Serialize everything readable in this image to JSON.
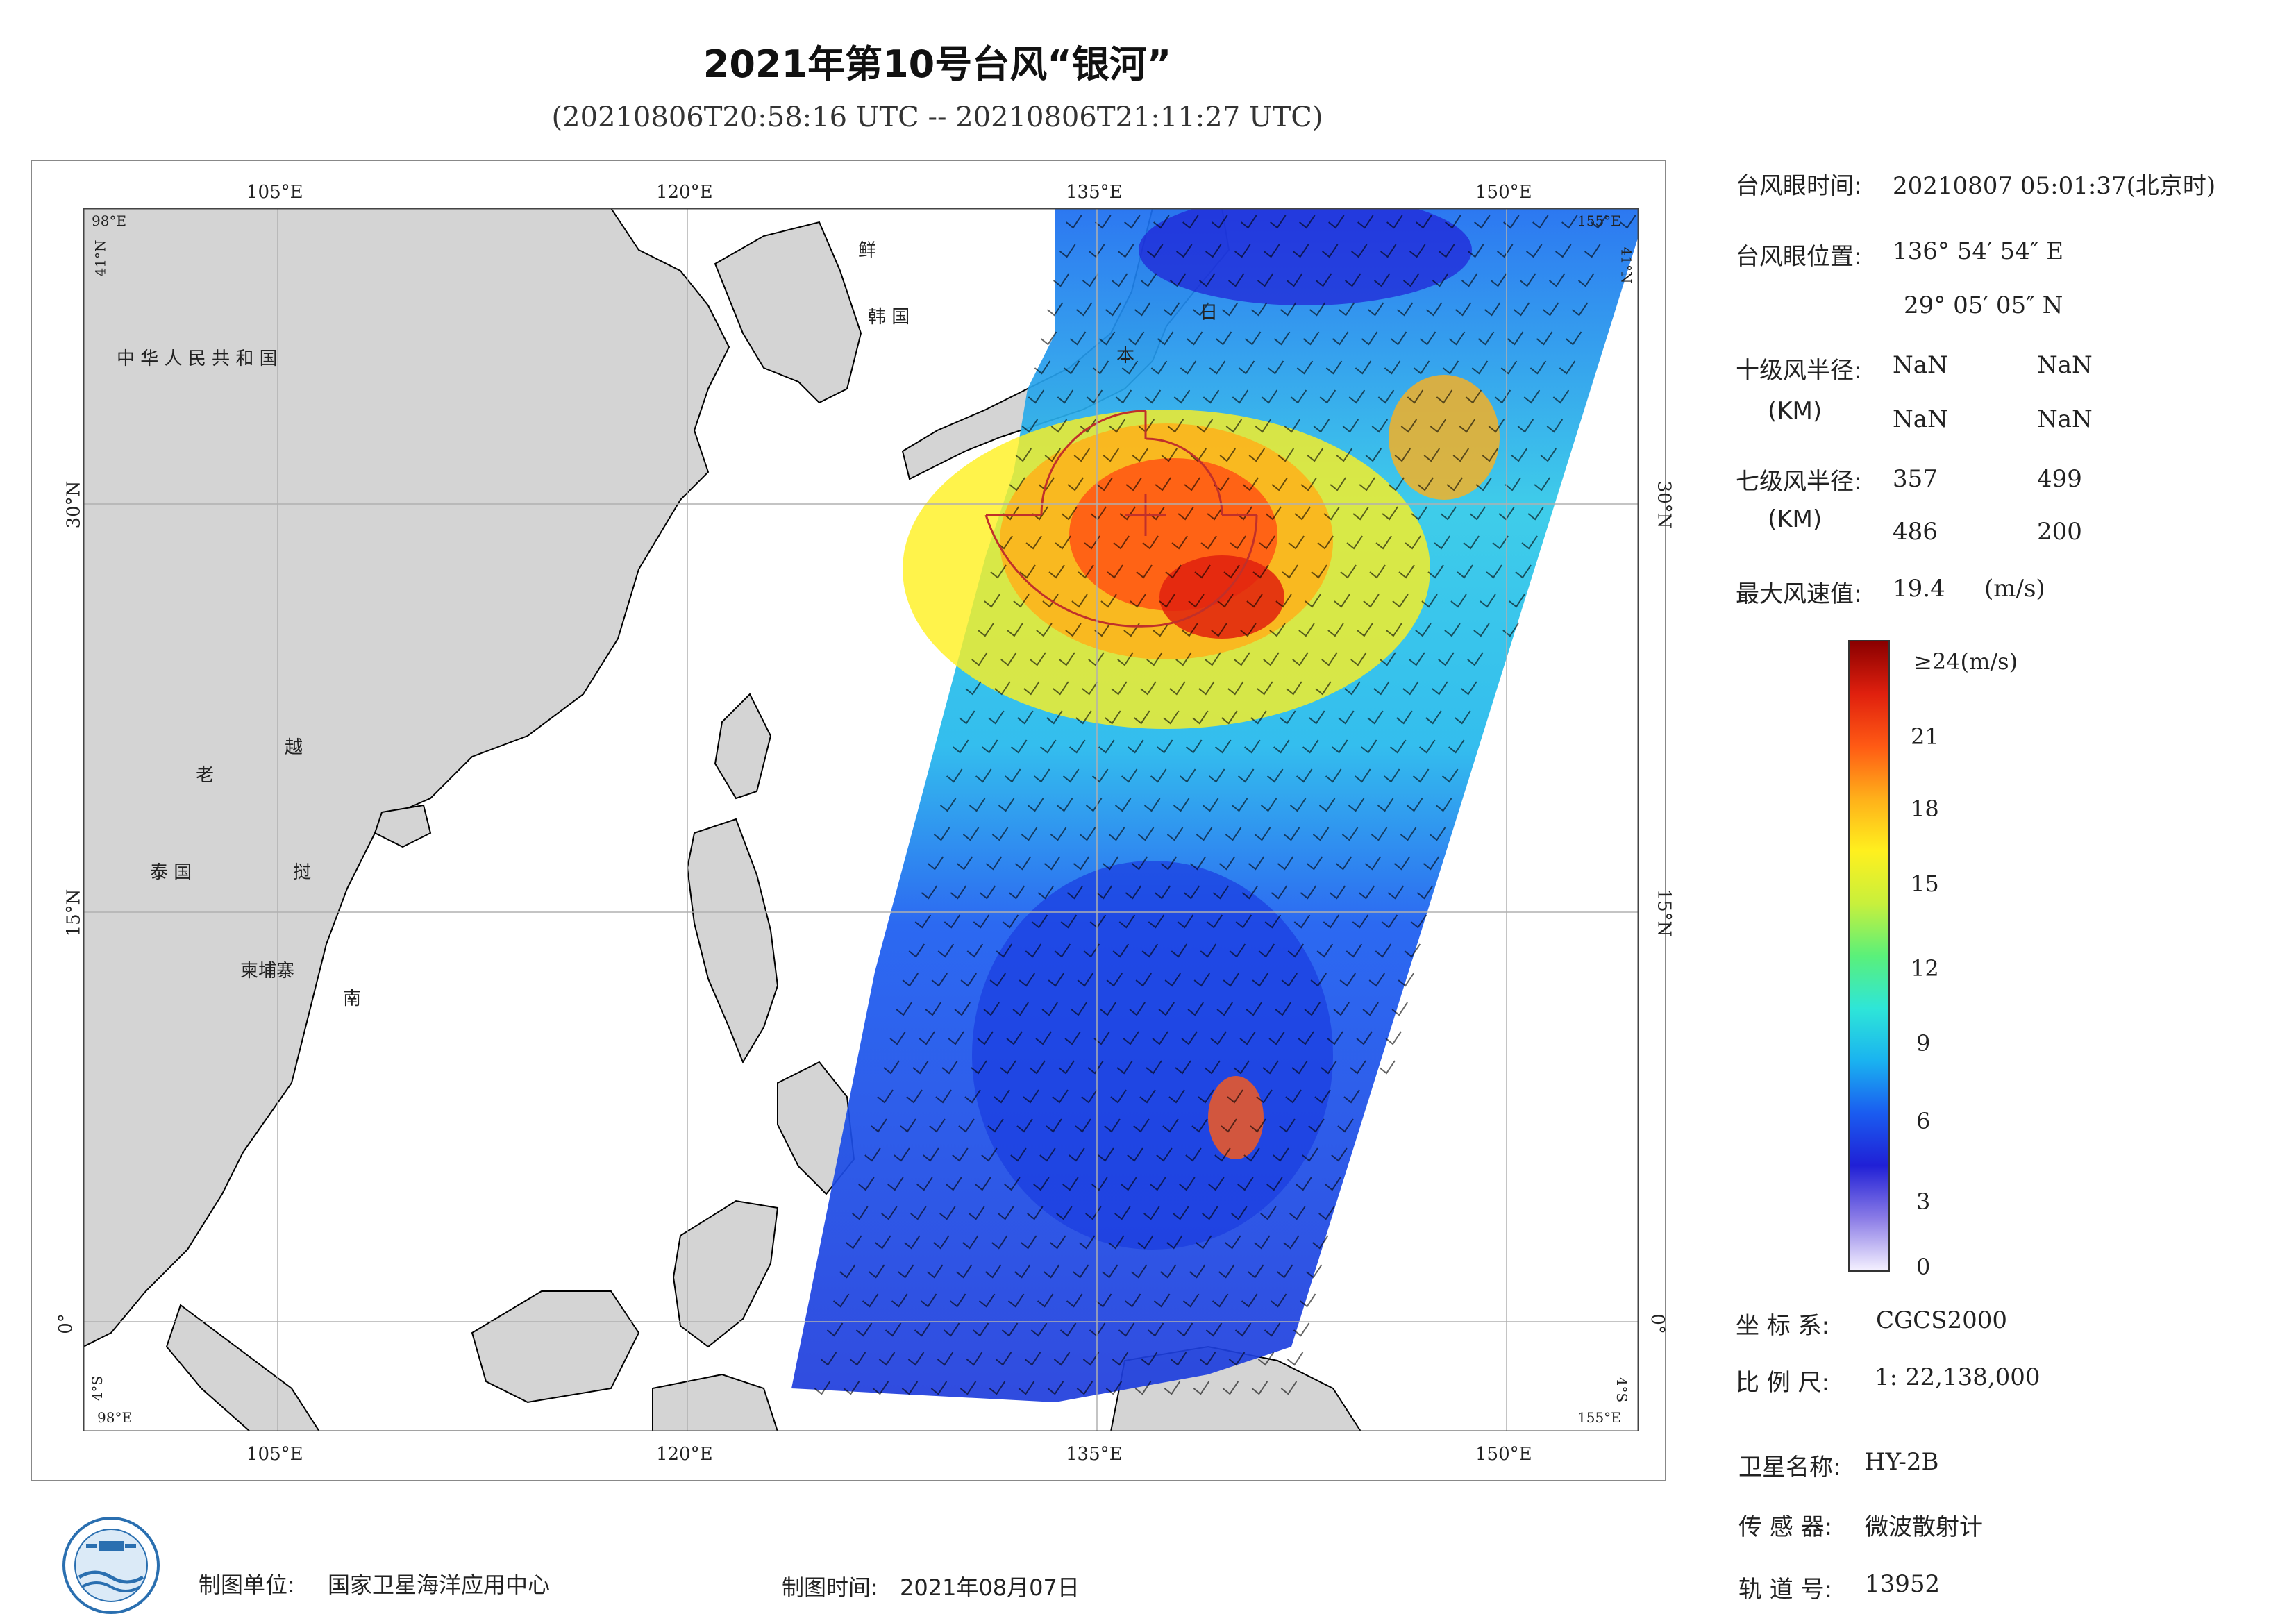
{
  "title": "2021年第10号台风“银河”",
  "subtitle": "(20210806T20:58:16 UTC -- 20210806T21:11:27 UTC)",
  "map": {
    "top_lon_labels": [
      "105°E",
      "120°E",
      "135°E",
      "150°E"
    ],
    "bottom_lon_labels": [
      "105°E",
      "120°E",
      "135°E",
      "150°E"
    ],
    "left_lat_labels": [
      "30°N",
      "15°N",
      "0°"
    ],
    "right_lat_labels": [
      "30°N",
      "15°N",
      "0°"
    ],
    "corner_labels": {
      "top_left_lon": "98°E",
      "top_left_lat": "41°N",
      "top_right_lon": "155°E",
      "top_right_lat": "41°N",
      "bottom_left_lon": "98°E",
      "bottom_left_lat": "4°S",
      "bottom_right_lon": "155°E",
      "bottom_right_lat": "4°S"
    },
    "place_labels": {
      "china": "中 华 人 民 共 和 国",
      "korea_north": "鲜",
      "korea_south": "韩 国",
      "japan_1": "日",
      "japan_2": "本",
      "laos": "老",
      "vietnam_1": "越",
      "vietnam_2": "南",
      "thailand": "泰 国",
      "cambodia": "柬埔寨",
      "vietnam_mid": "挝"
    },
    "land_color": "#d4d4d4",
    "coast_color": "#000000",
    "typhoon_circle_color": "#c0302a"
  },
  "info": {
    "eye_time_label": "台风眼时间:",
    "eye_time_value": "20210807 05:01:37(北京时)",
    "eye_pos_label": "台风眼位置:",
    "eye_lon": "136° 54′ 54″ E",
    "eye_lat": "29° 05′ 05″ N",
    "r10_label": "十级风半径:",
    "r10_unit": "(KM)",
    "r10_values": [
      "NaN",
      "NaN",
      "NaN",
      "NaN"
    ],
    "r7_label": "七级风半径:",
    "r7_unit": "(KM)",
    "r7_values": [
      "357",
      "499",
      "486",
      "200"
    ],
    "max_wind_label": "最大风速值:",
    "max_wind_value": "19.4",
    "max_wind_unit": "(m/s)"
  },
  "colorbar": {
    "top_label": "≥24(m/s)",
    "ticks": [
      "21",
      "18",
      "15",
      "12",
      "9",
      "6",
      "3",
      "0"
    ],
    "colors": [
      "#f4f0ff",
      "#8a7be6",
      "#2020d6",
      "#1a5cf0",
      "#1ab3f0",
      "#2ee6d8",
      "#5af07a",
      "#c8f03c",
      "#fff01e",
      "#ffb01a",
      "#ff5a14",
      "#e0200e",
      "#8a0000"
    ]
  },
  "meta": {
    "crs_label": "坐 标 系:",
    "crs_value": "CGCS2000",
    "scale_label": "比 例 尺:",
    "scale_value": "1: 22,138,000",
    "satellite_label": "卫星名称:",
    "satellite_value": "HY-2B",
    "sensor_label": "传 感 器:",
    "sensor_value": "微波散射计",
    "orbit_label": "轨 道 号:",
    "orbit_value": "13952"
  },
  "footer": {
    "unit_label": "制图单位:",
    "unit_value": "国家卫星海洋应用中心",
    "time_label": "制图时间:",
    "time_value": "2021年08月07日"
  }
}
